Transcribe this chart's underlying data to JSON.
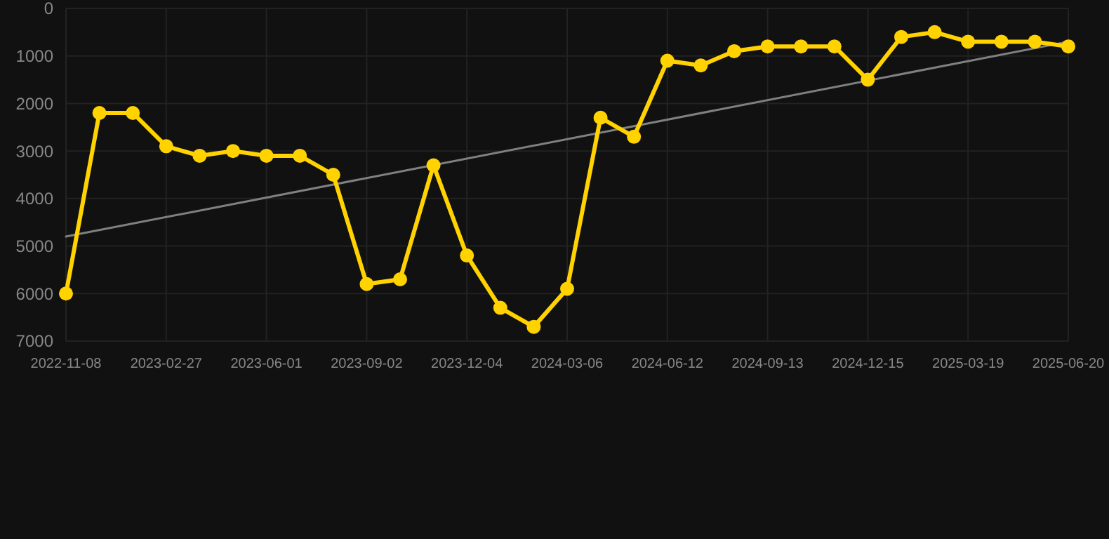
{
  "chart_data": {
    "type": "line",
    "categories": [
      "2022-11-08",
      null,
      null,
      "2023-02-27",
      null,
      null,
      "2023-06-01",
      null,
      null,
      "2023-09-02",
      null,
      null,
      "2023-12-04",
      null,
      null,
      "2024-03-06",
      null,
      null,
      "2024-06-12",
      null,
      null,
      "2024-09-13",
      null,
      null,
      "2024-12-15",
      null,
      null,
      "2025-03-19",
      null,
      null,
      "2025-06-20"
    ],
    "series": [
      {
        "color": "#ffd200",
        "marker": "circle",
        "values": [
          6000,
          2200,
          2200,
          2900,
          3100,
          3000,
          3100,
          3100,
          3500,
          5800,
          5700,
          3300,
          5200,
          6300,
          6700,
          5900,
          2300,
          2700,
          1100,
          1200,
          900,
          800,
          800,
          800,
          1500,
          600,
          500,
          700,
          700,
          700,
          800
        ]
      },
      {
        "type": "line",
        "color": "#808080",
        "marker": "none",
        "values": [
          4800,
          null,
          null,
          null,
          null,
          null,
          null,
          null,
          null,
          null,
          null,
          null,
          null,
          null,
          null,
          null,
          null,
          null,
          null,
          null,
          null,
          null,
          null,
          null,
          null,
          null,
          null,
          null,
          null,
          null,
          700
        ]
      }
    ],
    "ylim": [
      7000,
      0
    ],
    "yticks": [
      0,
      1000,
      2000,
      3000,
      4000,
      5000,
      6000,
      7000
    ],
    "grid": true
  }
}
